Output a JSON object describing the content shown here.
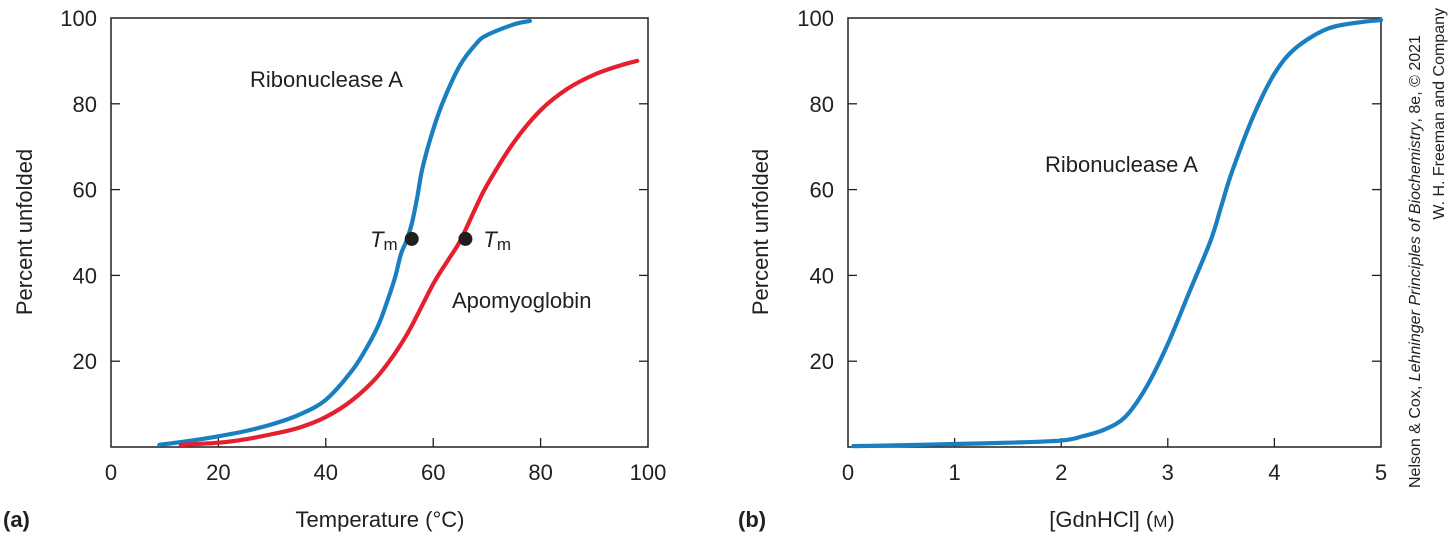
{
  "colors": {
    "blue": "#1a7fc1",
    "red": "#e5202e",
    "axis": "#231f20",
    "marker": "#231f20"
  },
  "credit": {
    "line1_prefix": "Nelson & Cox, ",
    "line1_italic": "Lehninger Principles of Biochemistry",
    "line1_suffix": ", 8e, © 2021",
    "line2": "W. H. Freeman and Company"
  },
  "chart_data": [
    {
      "type": "line",
      "panel_label": "(a)",
      "xlabel": "Temperature (°C)",
      "ylabel": "Percent unfolded",
      "xlim": [
        0,
        100
      ],
      "ylim": [
        0,
        100
      ],
      "xticks": [
        "0",
        "20",
        "40",
        "60",
        "80",
        "100"
      ],
      "yticks": [
        "20",
        "40",
        "60",
        "80",
        "100"
      ],
      "grid": false,
      "series": [
        {
          "name": "Ribonuclease A",
          "color": "#1a7fc1",
          "x": [
            9,
            15,
            20,
            25,
            30,
            35,
            40,
            45,
            48,
            50,
            52,
            53,
            54,
            55,
            56,
            57,
            58,
            60,
            62,
            65,
            68,
            70,
            75,
            78
          ],
          "y": [
            0.5,
            1.5,
            2.5,
            3.7,
            5.3,
            7.5,
            11,
            18,
            24,
            29,
            36,
            40,
            45,
            48,
            52,
            58,
            65,
            74,
            81,
            89,
            94,
            96,
            98.5,
            99.3
          ]
        },
        {
          "name": "Apomyoglobin",
          "color": "#e5202e",
          "x": [
            13,
            20,
            25,
            30,
            35,
            40,
            45,
            50,
            55,
            60,
            63,
            65,
            68,
            70,
            75,
            80,
            85,
            90,
            95,
            98
          ],
          "y": [
            0.5,
            1.0,
            1.8,
            3.0,
            4.5,
            7,
            11,
            17,
            26,
            38,
            44,
            48,
            56,
            61,
            71,
            78.5,
            83.5,
            86.8,
            89,
            90
          ]
        }
      ],
      "points": [
        {
          "label": "T",
          "subscript": "m",
          "x": 56,
          "y": 48.5,
          "series": "Ribonuclease A",
          "label_side": "left"
        },
        {
          "label": "T",
          "subscript": "m",
          "x": 66,
          "y": 48.5,
          "series": "Apomyoglobin",
          "label_side": "right"
        }
      ],
      "annotations": [
        "Ribonuclease A",
        "Apomyoglobin"
      ]
    },
    {
      "type": "line",
      "panel_label": "(b)",
      "xlabel_main": "[GdnHCl] (",
      "xlabel_unit": "M",
      "xlabel_close": ")",
      "ylabel": "Percent unfolded",
      "xlim": [
        0,
        5
      ],
      "ylim": [
        0,
        100
      ],
      "xticks": [
        "0",
        "1",
        "2",
        "3",
        "4",
        "5"
      ],
      "yticks": [
        "20",
        "40",
        "60",
        "80",
        "100"
      ],
      "grid": false,
      "series": [
        {
          "name": "Ribonuclease A",
          "color": "#1a7fc1",
          "x": [
            0.05,
            0.5,
            1.0,
            1.5,
            2.0,
            2.2,
            2.4,
            2.6,
            2.8,
            3.0,
            3.2,
            3.4,
            3.5,
            3.6,
            3.8,
            4.0,
            4.2,
            4.5,
            4.8,
            5.0
          ],
          "y": [
            0.2,
            0.4,
            0.7,
            1.0,
            1.5,
            2.5,
            4,
            7,
            14,
            24,
            36,
            48,
            56,
            64,
            77,
            87,
            93,
            97.5,
            99,
            99.5
          ]
        }
      ],
      "annotations": [
        "Ribonuclease A"
      ]
    }
  ]
}
